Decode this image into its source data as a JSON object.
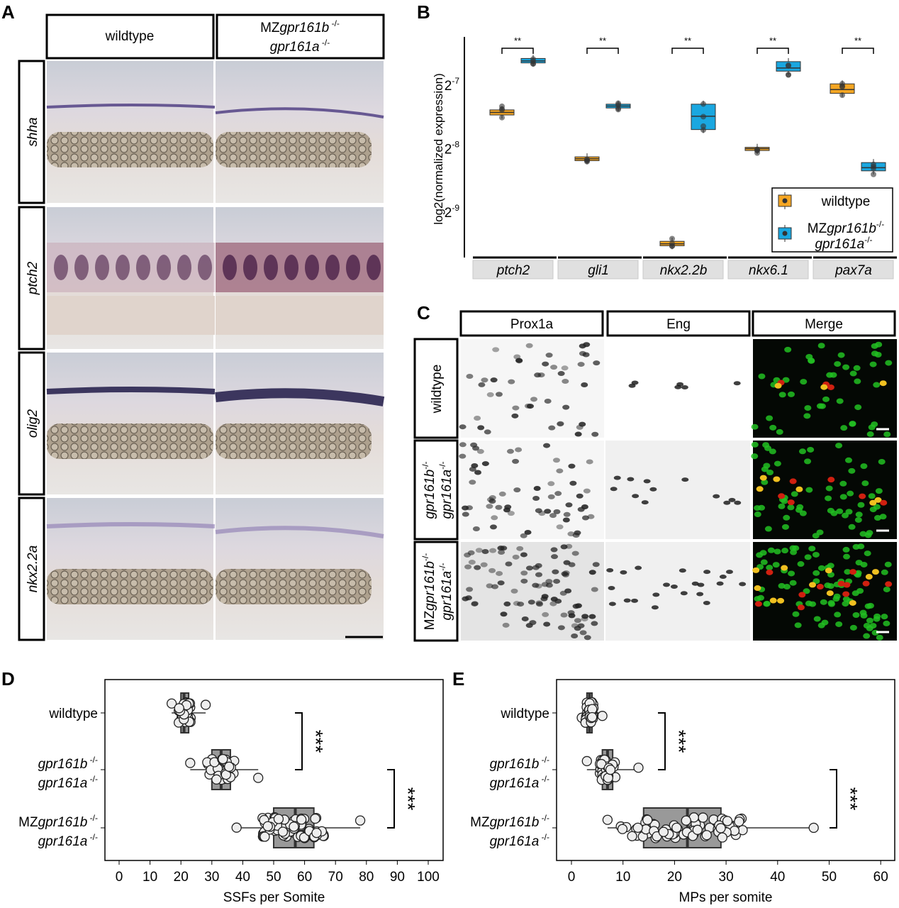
{
  "panel_labels": [
    "A",
    "B",
    "C",
    "D",
    "E"
  ],
  "panelA": {
    "columns": [
      {
        "line1": "wildtype",
        "line2": ""
      },
      {
        "line1_prefix": "MZ",
        "line1_italic": "gpr161b",
        "line1_sup": " -/-",
        "line2_italic": "gpr161a",
        "line2_sup": " -/-"
      }
    ],
    "rows": [
      "shha",
      "ptch2",
      "olig2",
      "nkx2.2a"
    ],
    "stain_colors": {
      "shha": "#5a4a8a",
      "ptch2": "#4a2048",
      "olig2": "#2a2550",
      "nkx2.2a": "#8a78b0"
    }
  },
  "chart_data": [
    {
      "panel": "B",
      "type": "box",
      "ylabel": "log2(normalized expression)",
      "y_scale": "log2",
      "yticks": [
        {
          "base": "2",
          "exp": "-7"
        },
        {
          "base": "2",
          "exp": "-8"
        },
        {
          "base": "2",
          "exp": "-9"
        }
      ],
      "categories": [
        "ptch2",
        "gli1",
        "nkx2.2b",
        "nkx6.1",
        "pax7a"
      ],
      "significance": [
        "**",
        "**",
        "**",
        "**",
        "**"
      ],
      "series": [
        {
          "name": "wildtype",
          "color": "#f5a623",
          "log2_median": [
            -7.43,
            -8.16,
            -9.5,
            -8.0,
            -7.07
          ],
          "log2_q1": [
            -7.47,
            -8.19,
            -9.53,
            -8.03,
            -7.13
          ],
          "log2_q3": [
            -7.39,
            -8.13,
            -9.46,
            -7.98,
            -6.98
          ]
        },
        {
          "name": "MZgpr161b-/- gpr161a-/-",
          "name_prefix": "MZ",
          "name_italic1": "gpr161b",
          "name_sup": "-/-",
          "name_italic2": "gpr161a",
          "color": "#1aa7e0",
          "log2_median": [
            -6.62,
            -7.33,
            -7.49,
            -6.73,
            -8.3
          ],
          "log2_q1": [
            -6.65,
            -7.36,
            -7.7,
            -6.78,
            -8.35
          ],
          "log2_q3": [
            -6.58,
            -7.3,
            -7.3,
            -6.63,
            -8.22
          ]
        }
      ],
      "legend": "bottom-right"
    },
    {
      "panel": "D",
      "type": "box-strip",
      "xlabel": "SSFs per Somite",
      "xlim": [
        0,
        100
      ],
      "xticks": [
        0,
        10,
        20,
        30,
        40,
        50,
        60,
        70,
        80,
        90,
        100
      ],
      "categories": [
        {
          "l1": "wildtype"
        },
        {
          "l1_it": "gpr161b",
          "l1_sup": " -/-",
          "l2_it": "gpr161a",
          "l2_sup": " -/-"
        },
        {
          "l1_pre": "MZ",
          "l1_it": "gpr161b",
          "l1_sup": " -/-",
          "l2_it": "gpr161a",
          "l2_sup": " -/-"
        }
      ],
      "median": [
        21,
        33,
        57
      ],
      "q1": [
        20,
        30,
        50
      ],
      "q3": [
        22.5,
        36,
        63
      ],
      "min": [
        17,
        23,
        38
      ],
      "max": [
        28,
        45,
        78
      ],
      "significance": [
        {
          "between": [
            0,
            1
          ],
          "label": "***"
        },
        {
          "between": [
            1,
            2
          ],
          "label": "***"
        }
      ]
    },
    {
      "panel": "E",
      "type": "box-strip",
      "xlabel": "MPs per somite",
      "xlim": [
        0,
        60
      ],
      "xticks": [
        0,
        10,
        20,
        30,
        40,
        50,
        60
      ],
      "categories": [
        {
          "l1": "wildtype"
        },
        {
          "l1_it": "gpr161b",
          "l1_sup": " -/-",
          "l2_it": "gpr161a",
          "l2_sup": " -/-"
        },
        {
          "l1_pre": "MZ",
          "l1_it": "gpr161b",
          "l1_sup": " -/-",
          "l2_it": "gpr161a",
          "l2_sup": " -/-"
        }
      ],
      "median": [
        3.5,
        7,
        22.5
      ],
      "q1": [
        3,
        6,
        14
      ],
      "q3": [
        4,
        8,
        29
      ],
      "min": [
        2,
        3,
        7
      ],
      "max": [
        6,
        13,
        47
      ],
      "significance": [
        {
          "between": [
            0,
            1
          ],
          "label": "***"
        },
        {
          "between": [
            1,
            2
          ],
          "label": "***"
        }
      ]
    }
  ],
  "panelC": {
    "columns": [
      "Prox1a",
      "Eng",
      "Merge"
    ],
    "rows": [
      {
        "l1": "wildtype"
      },
      {
        "l1_it": "gpr161b",
        "l1_sup": "-/-",
        "l2_it": "gpr161a",
        "l2_sup": "-/-"
      },
      {
        "l1_pre": "MZ",
        "l1_it": "gpr161b",
        "l1_sup": "-/-",
        "l2_it": "gpr161a",
        "l2_sup": "-/-"
      }
    ],
    "merge_colors": {
      "prox1a": "#22c022",
      "eng": "#d02010",
      "overlap": "#f0c020"
    }
  }
}
